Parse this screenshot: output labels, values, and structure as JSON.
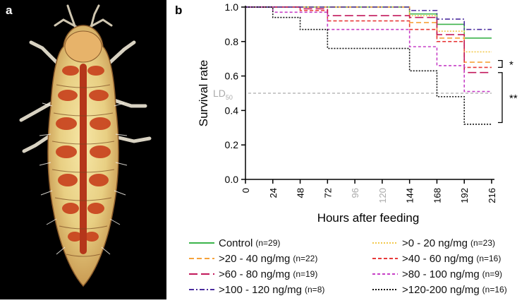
{
  "panels": {
    "a": "a",
    "b": "b"
  },
  "chart_data": {
    "type": "line",
    "subtype": "step",
    "xlabel": "Hours after feeding",
    "ylabel": "Survival rate",
    "xlim": [
      0,
      216
    ],
    "ylim": [
      0,
      1.0
    ],
    "xticks": [
      0,
      24,
      48,
      72,
      96,
      120,
      144,
      168,
      192,
      216
    ],
    "xticks_greyed": [
      96,
      120
    ],
    "yticks": [
      "0.0",
      "0.2",
      "0.4",
      "0.6",
      "0.8",
      "1.0"
    ],
    "grid": false,
    "reference_line": {
      "label": "LD",
      "label_sub": "50",
      "y": 0.5,
      "color": "#aaaaaa"
    },
    "significance": [
      {
        "label": "*",
        "from_y": 0.69,
        "to_y": 0.65
      },
      {
        "label": "**",
        "from_y": 0.62,
        "to_y": 0.33
      }
    ],
    "series": [
      {
        "name": "Control",
        "n": "(n=29)",
        "color": "#3cb44b",
        "dash": "none",
        "x": [
          0,
          144,
          168,
          192,
          216
        ],
        "y": [
          1.0,
          0.96,
          0.9,
          0.82,
          0.82
        ]
      },
      {
        "name": ">0 - 20 ng/mg",
        "n": "(n=23)",
        "color": "#f2c94c",
        "dash": "2,2",
        "x": [
          0,
          144,
          168,
          192,
          216
        ],
        "y": [
          1.0,
          0.95,
          0.86,
          0.74,
          0.74
        ]
      },
      {
        "name": ">20 - 40 ng/mg",
        "n": "(n=22)",
        "color": "#f7a23a",
        "dash": "7,4",
        "x": [
          0,
          144,
          168,
          192,
          216
        ],
        "y": [
          1.0,
          0.91,
          0.82,
          0.68,
          0.68
        ]
      },
      {
        "name": ">40 - 60 ng/mg",
        "n": "(n=16)",
        "color": "#e83a3a",
        "dash": "5,3",
        "x": [
          0,
          48,
          72,
          144,
          168,
          192,
          216
        ],
        "y": [
          1.0,
          0.98,
          0.92,
          0.87,
          0.8,
          0.65,
          0.65
        ]
      },
      {
        "name": ">60 - 80 ng/mg",
        "n": "(n=19)",
        "color": "#c2185b",
        "dash": "12,5",
        "x": [
          0,
          48,
          72,
          144,
          168,
          192,
          216
        ],
        "y": [
          1.0,
          0.99,
          0.95,
          0.94,
          0.84,
          0.62,
          0.62
        ]
      },
      {
        "name": ">80 - 100 ng/mg",
        "n": "(n=9)",
        "color": "#c63fc6",
        "dash": "4,3",
        "x": [
          0,
          24,
          72,
          144,
          168,
          192,
          216
        ],
        "y": [
          1.0,
          0.97,
          0.87,
          0.77,
          0.66,
          0.51,
          0.51
        ]
      },
      {
        "name": ">100 - 120 ng/mg",
        "n": "(n=8)",
        "color": "#4b2d9e",
        "dash": "7,3,2,3",
        "x": [
          0,
          144,
          168,
          192,
          216
        ],
        "y": [
          1.0,
          0.98,
          0.93,
          0.87,
          0.87
        ]
      },
      {
        "name": ">120-200 ng/mg",
        "n": "(n=16)",
        "color": "#111111",
        "dash": "2,2",
        "x": [
          0,
          24,
          48,
          72,
          144,
          168,
          192,
          216
        ],
        "y": [
          1.0,
          0.94,
          0.87,
          0.76,
          0.63,
          0.48,
          0.32,
          0.32
        ]
      }
    ]
  }
}
